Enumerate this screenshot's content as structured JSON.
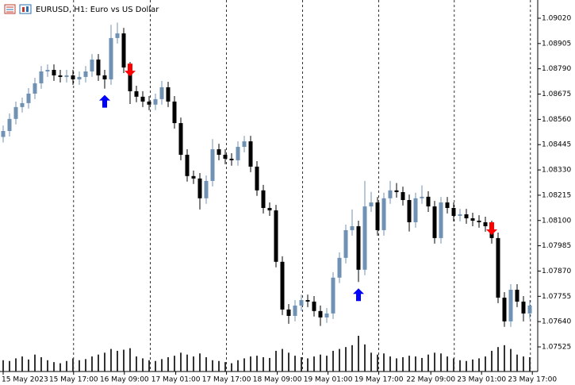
{
  "chart_data": {
    "type": "candlestick",
    "title": "EURUSD, H1:  Euro vs US Dollar",
    "open": [
      1.0848,
      1.08507,
      1.08562,
      1.08616,
      1.08634,
      1.08677,
      1.08724,
      1.08778,
      1.08785,
      1.0876,
      1.08753,
      1.0876,
      1.08742,
      1.08753,
      1.08778,
      1.08832,
      1.0876,
      1.08742,
      1.0893,
      1.08951,
      1.08796,
      1.08688,
      1.08663,
      1.08641,
      1.08627,
      1.08652,
      1.08706,
      1.08641,
      1.08543,
      1.08399,
      1.08302,
      1.08291,
      1.08201,
      1.0828,
      1.08424,
      1.08399,
      1.08381,
      1.08374,
      1.08435,
      1.0846,
      1.08345,
      1.08237,
      1.08157,
      1.08146,
      1.07912,
      1.07695,
      1.07666,
      1.07713,
      1.07738,
      1.07731,
      1.07688,
      1.07659,
      1.07677,
      1.0784,
      1.0793,
      1.08056,
      1.08074,
      1.07876,
      1.08164,
      1.08182,
      1.08056,
      1.08201,
      1.08237,
      1.08229,
      1.08193,
      1.08092,
      1.08201,
      1.08208,
      1.08164,
      1.0802,
      1.08182,
      1.08157,
      1.08121,
      1.08128,
      1.0811,
      1.08099,
      1.08092,
      1.08074,
      1.0802,
      1.07749,
      1.07641,
      1.07785,
      1.07731,
      1.07677
    ],
    "high": [
      1.08532,
      1.08587,
      1.08641,
      1.08659,
      1.08702,
      1.08749,
      1.08803,
      1.0881,
      1.0881,
      1.08785,
      1.08785,
      1.08785,
      1.08778,
      1.08803,
      1.08857,
      1.08857,
      1.08785,
      1.0899,
      1.09,
      1.08976,
      1.08821,
      1.08713,
      1.08688,
      1.08666,
      1.08677,
      1.08735,
      1.08731,
      1.08666,
      1.08568,
      1.08424,
      1.08327,
      1.08316,
      1.08305,
      1.0847,
      1.08449,
      1.08424,
      1.08406,
      1.0846,
      1.08485,
      1.08485,
      1.0837,
      1.08262,
      1.08182,
      1.08171,
      1.07937,
      1.0772,
      1.07738,
      1.07763,
      1.07763,
      1.07756,
      1.07713,
      1.07702,
      1.07865,
      1.07955,
      1.08081,
      1.0815,
      1.08099,
      1.0828,
      1.0823,
      1.08207,
      1.08226,
      1.0828,
      1.0827,
      1.08254,
      1.08218,
      1.08226,
      1.0826,
      1.08233,
      1.08189,
      1.08207,
      1.08207,
      1.08182,
      1.08153,
      1.08153,
      1.08135,
      1.08124,
      1.08117,
      1.08099,
      1.08045,
      1.07774,
      1.0781,
      1.0781,
      1.07756,
      1.07738
    ],
    "low": [
      1.08455,
      1.08482,
      1.08537,
      1.08591,
      1.08609,
      1.08652,
      1.08699,
      1.08753,
      1.08735,
      1.08728,
      1.08728,
      1.08717,
      1.08717,
      1.08728,
      1.08753,
      1.08735,
      1.087,
      1.08717,
      1.08905,
      1.08771,
      1.0863,
      1.08638,
      1.08616,
      1.08602,
      1.08602,
      1.08627,
      1.08616,
      1.08518,
      1.08374,
      1.08277,
      1.08266,
      1.0815,
      1.08176,
      1.08255,
      1.08374,
      1.08356,
      1.08349,
      1.08349,
      1.0841,
      1.0832,
      1.08212,
      1.08132,
      1.08121,
      1.07887,
      1.0767,
      1.0763,
      1.07641,
      1.07688,
      1.07706,
      1.07663,
      1.0762,
      1.07634,
      1.07652,
      1.07815,
      1.07905,
      1.08031,
      1.0782,
      1.07851,
      1.08139,
      1.08031,
      1.08031,
      1.08176,
      1.08204,
      1.08168,
      1.0805,
      1.08067,
      1.08176,
      1.08139,
      1.07995,
      1.07995,
      1.08132,
      1.08096,
      1.08096,
      1.08085,
      1.08074,
      1.08067,
      1.08049,
      1.07995,
      1.07724,
      1.07616,
      1.07616,
      1.07706,
      1.07641,
      1.07652
    ],
    "close": [
      1.08507,
      1.08562,
      1.08616,
      1.08634,
      1.08677,
      1.08724,
      1.08778,
      1.08785,
      1.0876,
      1.08753,
      1.0876,
      1.08742,
      1.08753,
      1.08778,
      1.08832,
      1.0876,
      1.08742,
      1.0893,
      1.08951,
      1.08796,
      1.08688,
      1.08663,
      1.08641,
      1.08627,
      1.08652,
      1.08706,
      1.08641,
      1.08543,
      1.08399,
      1.08302,
      1.08291,
      1.08201,
      1.0828,
      1.08424,
      1.08399,
      1.08381,
      1.08374,
      1.08435,
      1.0846,
      1.08345,
      1.08237,
      1.08157,
      1.08146,
      1.07912,
      1.07695,
      1.07666,
      1.07713,
      1.07738,
      1.07731,
      1.07688,
      1.07659,
      1.07677,
      1.0784,
      1.0793,
      1.08056,
      1.08074,
      1.07876,
      1.08164,
      1.08182,
      1.08056,
      1.08201,
      1.08237,
      1.08229,
      1.08193,
      1.08092,
      1.08201,
      1.08208,
      1.08164,
      1.0802,
      1.08182,
      1.08157,
      1.08121,
      1.08128,
      1.0811,
      1.08099,
      1.08092,
      1.08074,
      1.0802,
      1.07749,
      1.07641,
      1.07785,
      1.07731,
      1.07677,
      1.07713
    ],
    "volume": [
      30,
      28,
      35,
      40,
      32,
      45,
      38,
      30,
      25,
      22,
      28,
      35,
      30,
      33,
      40,
      45,
      50,
      60,
      55,
      58,
      62,
      40,
      35,
      30,
      28,
      33,
      38,
      42,
      50,
      45,
      40,
      48,
      38,
      30,
      28,
      25,
      22,
      30,
      35,
      40,
      42,
      38,
      36,
      55,
      60,
      50,
      42,
      38,
      35,
      40,
      45,
      42,
      55,
      60,
      65,
      70,
      95,
      72,
      50,
      45,
      48,
      40,
      35,
      38,
      42,
      40,
      36,
      45,
      50,
      48,
      40,
      35,
      30,
      28,
      32,
      35,
      40,
      55,
      65,
      70,
      60,
      45,
      40,
      38
    ],
    "buy_signals": [
      16,
      56
    ],
    "sell_signals": [
      20,
      77
    ],
    "up_color": "#6f92b4",
    "down_color": "#000000",
    "volume_color": "#333333",
    "buy_color": "#0000ff",
    "sell_color": "#ff0000",
    "xlim": [
      -0.5,
      84.25
    ],
    "ylim": [
      1.07413,
      1.09103
    ],
    "yticks": [
      {
        "value": 1.0902,
        "label": "1.09020"
      },
      1.08905,
      {
        "value": 1.0879,
        "label": "1.08790"
      },
      1.08675,
      {
        "value": 1.0856,
        "label": "1.08560"
      },
      1.08445,
      {
        "value": 1.0833,
        "label": "1.08330"
      },
      1.08215,
      {
        "value": 1.081,
        "label": "1.08100"
      },
      1.07985,
      {
        "value": 1.0787,
        "label": "1.07870"
      },
      1.07755,
      {
        "value": 1.0764,
        "label": "1.07640"
      },
      1.07525
    ],
    "xticks": [
      {
        "value": 0,
        "label": "15 May 2023"
      },
      {
        "value": 11.1,
        "label": "15 May 17:00"
      },
      {
        "value": 19.1,
        "label": "16 May 09:00"
      },
      {
        "value": 27.2,
        "label": "17 May 01:00"
      },
      {
        "value": 35.2,
        "label": "17 May 17:00"
      },
      {
        "value": 43.2,
        "label": "18 May 09:00"
      },
      {
        "value": 51.2,
        "label": "19 May 01:00"
      },
      {
        "value": 59.2,
        "label": "19 May 17:00"
      },
      {
        "value": 67.4,
        "label": "22 May 09:00"
      },
      {
        "value": 75.4,
        "label": "23 May 01:00"
      },
      {
        "value": 83.4,
        "label": "23 May 17:00"
      }
    ],
    "period_separators": [
      11.1,
      23.2,
      35.2,
      47.2,
      59.2,
      71.1,
      83.1
    ]
  }
}
